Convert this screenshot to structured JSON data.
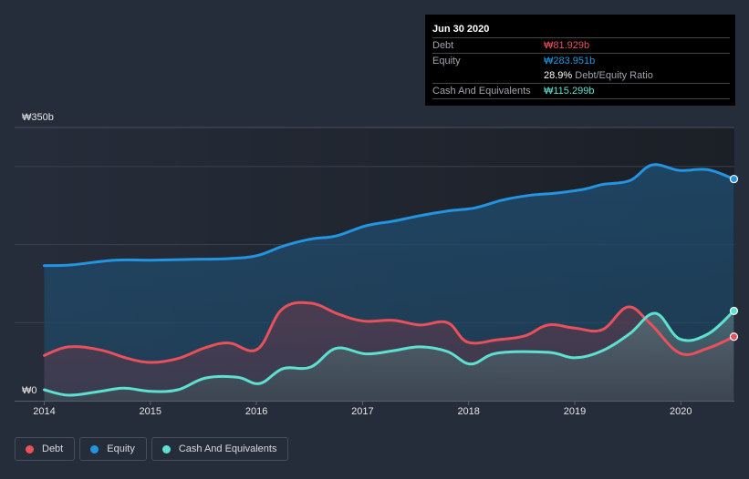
{
  "tooltip": {
    "date": "Jun 30 2020",
    "debt_label": "Debt",
    "debt_value": "₩81.929b",
    "equity_label": "Equity",
    "equity_value": "₩283.951b",
    "ratio_value": "28.9%",
    "ratio_label": "Debt/Equity Ratio",
    "cash_label": "Cash And Equivalents",
    "cash_value": "₩115.299b"
  },
  "legend": [
    {
      "label": "Debt",
      "color": "#e8505b"
    },
    {
      "label": "Equity",
      "color": "#2394df"
    },
    {
      "label": "Cash And Equivalents",
      "color": "#5ee0d0"
    }
  ],
  "chart_data": {
    "type": "area",
    "title": "",
    "xlabel": "",
    "ylabel": "",
    "ylim": [
      0,
      350
    ],
    "xlim": [
      2013.72,
      2020.5
    ],
    "y_tick_labels": [
      {
        "value": 350,
        "label": "₩350b"
      },
      {
        "value": 0,
        "label": "₩0"
      }
    ],
    "gridlines_y": [
      100,
      200,
      300,
      350
    ],
    "x_ticks": [
      2014,
      2015,
      2016,
      2017,
      2018,
      2019,
      2020
    ],
    "x_tick_labels": [
      "2014",
      "2015",
      "2016",
      "2017",
      "2018",
      "2019",
      "2020"
    ],
    "units": "₩ billions",
    "legend_position": "bottom-left",
    "series": [
      {
        "name": "Equity",
        "color": "#2394df",
        "points": [
          [
            2014.0,
            173
          ],
          [
            2014.26,
            174
          ],
          [
            2014.66,
            180
          ],
          [
            2015.01,
            180
          ],
          [
            2015.35,
            181
          ],
          [
            2015.74,
            182
          ],
          [
            2016.01,
            186
          ],
          [
            2016.25,
            198
          ],
          [
            2016.51,
            207
          ],
          [
            2016.75,
            211
          ],
          [
            2017.03,
            224
          ],
          [
            2017.29,
            230
          ],
          [
            2017.54,
            237
          ],
          [
            2017.8,
            243
          ],
          [
            2018.06,
            247
          ],
          [
            2018.32,
            257
          ],
          [
            2018.57,
            263
          ],
          [
            2018.83,
            266
          ],
          [
            2019.09,
            271
          ],
          [
            2019.26,
            277
          ],
          [
            2019.52,
            282
          ],
          [
            2019.73,
            302
          ],
          [
            2019.99,
            295
          ],
          [
            2020.25,
            296
          ],
          [
            2020.5,
            284
          ]
        ]
      },
      {
        "name": "Debt",
        "color": "#e8505b",
        "points": [
          [
            2014.0,
            58
          ],
          [
            2014.23,
            69
          ],
          [
            2014.53,
            65
          ],
          [
            2014.79,
            54
          ],
          [
            2015.01,
            49
          ],
          [
            2015.26,
            54
          ],
          [
            2015.52,
            68
          ],
          [
            2015.74,
            74
          ],
          [
            2016.01,
            66
          ],
          [
            2016.24,
            117
          ],
          [
            2016.51,
            125
          ],
          [
            2016.77,
            111
          ],
          [
            2017.01,
            102
          ],
          [
            2017.29,
            103
          ],
          [
            2017.54,
            97
          ],
          [
            2017.8,
            100
          ],
          [
            2017.99,
            75
          ],
          [
            2018.27,
            78
          ],
          [
            2018.53,
            83
          ],
          [
            2018.75,
            97
          ],
          [
            2019.0,
            93
          ],
          [
            2019.26,
            91
          ],
          [
            2019.5,
            120
          ],
          [
            2019.71,
            99
          ],
          [
            2019.99,
            61
          ],
          [
            2020.25,
            67
          ],
          [
            2020.5,
            82
          ]
        ]
      },
      {
        "name": "Cash And Equivalents",
        "color": "#5ee0d0",
        "points": [
          [
            2014.0,
            14
          ],
          [
            2014.23,
            7
          ],
          [
            2014.53,
            12
          ],
          [
            2014.75,
            16
          ],
          [
            2015.01,
            12
          ],
          [
            2015.26,
            14
          ],
          [
            2015.52,
            29
          ],
          [
            2015.82,
            30
          ],
          [
            2016.03,
            22
          ],
          [
            2016.25,
            41
          ],
          [
            2016.51,
            43
          ],
          [
            2016.75,
            67
          ],
          [
            2017.03,
            60
          ],
          [
            2017.29,
            64
          ],
          [
            2017.54,
            69
          ],
          [
            2017.8,
            63
          ],
          [
            2018.02,
            47
          ],
          [
            2018.27,
            61
          ],
          [
            2018.75,
            62
          ],
          [
            2019.0,
            55
          ],
          [
            2019.26,
            64
          ],
          [
            2019.52,
            86
          ],
          [
            2019.76,
            112
          ],
          [
            2019.99,
            79
          ],
          [
            2020.25,
            85
          ],
          [
            2020.5,
            115
          ]
        ]
      }
    ]
  }
}
